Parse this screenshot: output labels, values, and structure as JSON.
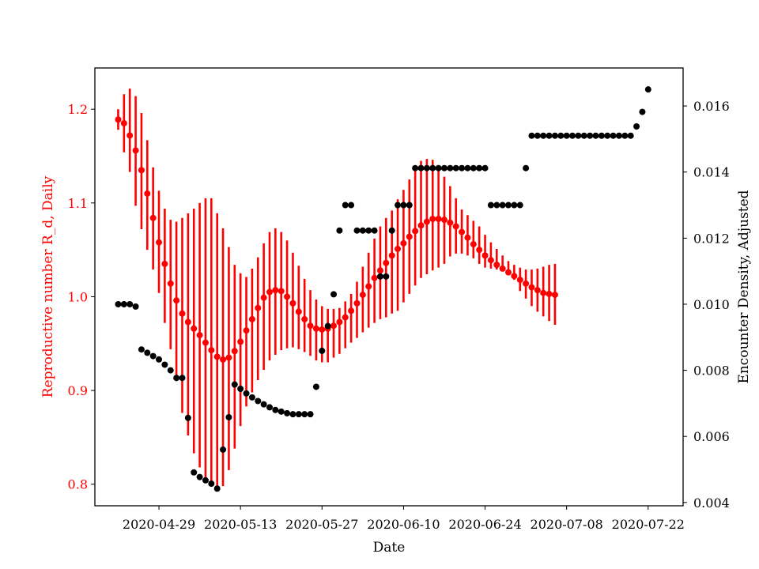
{
  "chart_data": {
    "type": "scatter",
    "xlabel": "Date",
    "x_ticks": [
      "2020-04-29",
      "2020-05-13",
      "2020-05-27",
      "2020-06-10",
      "2020-06-24",
      "2020-07-08",
      "2020-07-22"
    ],
    "x_range": [
      "2020-04-18",
      "2020-07-28"
    ],
    "left_axis": {
      "label": "Reproductive number R_d, Daily",
      "color": "#ff0000",
      "ylim": [
        0.777,
        1.244
      ],
      "ticks": [
        0.8,
        0.9,
        1.0,
        1.1,
        1.2
      ]
    },
    "right_axis": {
      "label": "Encounter Density, Adjusted",
      "color": "#000000",
      "ylim": [
        0.0039,
        0.01715
      ],
      "ticks": [
        0.004,
        0.006,
        0.008,
        0.01,
        0.012,
        0.014,
        0.016
      ]
    },
    "grid": false,
    "series": [
      {
        "axis": "left",
        "kind": "errorbar",
        "color": "#ff0000",
        "start_date": "2020-04-22",
        "y": [
          1.189,
          1.185,
          1.172,
          1.156,
          1.135,
          1.11,
          1.084,
          1.058,
          1.035,
          1.014,
          0.996,
          0.982,
          0.973,
          0.966,
          0.959,
          0.951,
          0.943,
          0.936,
          0.933,
          0.935,
          0.942,
          0.952,
          0.964,
          0.976,
          0.988,
          0.999,
          1.005,
          1.007,
          1.006,
          1.0,
          0.993,
          0.984,
          0.976,
          0.969,
          0.966,
          0.965,
          0.966,
          0.969,
          0.973,
          0.978,
          0.985,
          0.993,
          1.002,
          1.011,
          1.02,
          1.028,
          1.036,
          1.044,
          1.051,
          1.057,
          1.064,
          1.07,
          1.076,
          1.08,
          1.083,
          1.083,
          1.082,
          1.079,
          1.075,
          1.069,
          1.063,
          1.056,
          1.05,
          1.044,
          1.039,
          1.034,
          1.03,
          1.026,
          1.022,
          1.018,
          1.014,
          1.01,
          1.007,
          1.004,
          1.003,
          1.002
        ],
        "lo": [
          1.178,
          1.154,
          1.133,
          1.097,
          1.072,
          1.05,
          1.029,
          1.004,
          0.972,
          0.944,
          0.91,
          0.876,
          0.852,
          0.833,
          0.818,
          0.806,
          0.799,
          0.795,
          0.798,
          0.815,
          0.838,
          0.862,
          0.883,
          0.898,
          0.911,
          0.922,
          0.932,
          0.938,
          0.943,
          0.945,
          0.946,
          0.944,
          0.941,
          0.937,
          0.932,
          0.93,
          0.93,
          0.935,
          0.939,
          0.945,
          0.951,
          0.956,
          0.962,
          0.967,
          0.972,
          0.976,
          0.978,
          0.982,
          0.985,
          0.994,
          1.003,
          1.012,
          1.02,
          1.024,
          1.028,
          1.031,
          1.035,
          1.043,
          1.046,
          1.046,
          1.044,
          1.041,
          1.035,
          1.031,
          1.03,
          1.029,
          1.029,
          1.026,
          1.018,
          1.006,
          0.998,
          0.99,
          0.984,
          0.979,
          0.974,
          0.97
        ],
        "hi": [
          1.2,
          1.216,
          1.222,
          1.214,
          1.196,
          1.167,
          1.138,
          1.113,
          1.094,
          1.082,
          1.08,
          1.084,
          1.089,
          1.094,
          1.1,
          1.105,
          1.105,
          1.089,
          1.073,
          1.053,
          1.034,
          1.025,
          1.021,
          1.03,
          1.042,
          1.057,
          1.069,
          1.073,
          1.069,
          1.06,
          1.047,
          1.033,
          1.019,
          1.007,
          0.997,
          0.99,
          0.987,
          0.987,
          0.988,
          0.995,
          1.003,
          1.016,
          1.032,
          1.047,
          1.062,
          1.075,
          1.084,
          1.092,
          1.104,
          1.114,
          1.125,
          1.138,
          1.145,
          1.147,
          1.146,
          1.136,
          1.128,
          1.118,
          1.105,
          1.093,
          1.087,
          1.081,
          1.075,
          1.066,
          1.058,
          1.051,
          1.044,
          1.038,
          1.034,
          1.031,
          1.029,
          1.029,
          1.03,
          1.032,
          1.034,
          1.035
        ]
      },
      {
        "axis": "right",
        "kind": "scatter",
        "color": "#000000",
        "start_date": "2020-04-22",
        "y": [
          0.01,
          0.01,
          0.01,
          0.00993,
          0.00863,
          0.00853,
          0.00843,
          0.00833,
          0.00817,
          0.008,
          0.00777,
          0.00777,
          0.00656,
          0.00491,
          0.00477,
          0.00467,
          0.00457,
          0.00442,
          0.0056,
          0.00658,
          0.00757,
          0.00744,
          0.0073,
          0.00718,
          0.00707,
          0.00697,
          0.00688,
          0.0068,
          0.00675,
          0.0067,
          0.00667,
          0.00667,
          0.00667,
          0.00667,
          0.0075,
          0.00859,
          0.00934,
          0.0103,
          0.01223,
          0.013,
          0.013,
          0.01223,
          0.01223,
          0.01223,
          0.01223,
          0.01084,
          0.01084,
          0.01223,
          0.013,
          0.013,
          0.013,
          0.01412,
          0.01412,
          0.01412,
          0.01412,
          0.01412,
          0.01412,
          0.01412,
          0.01412,
          0.01412,
          0.01412,
          0.01412,
          0.01412,
          0.01412,
          0.013,
          0.013,
          0.013,
          0.013,
          0.013,
          0.013,
          0.01412,
          0.0151,
          0.0151,
          0.0151,
          0.0151,
          0.0151,
          0.0151,
          0.0151,
          0.0151,
          0.0151,
          0.0151,
          0.0151,
          0.0151,
          0.0151,
          0.0151,
          0.0151,
          0.0151,
          0.0151,
          0.0151,
          0.01538,
          0.01582,
          0.0165
        ]
      }
    ]
  }
}
